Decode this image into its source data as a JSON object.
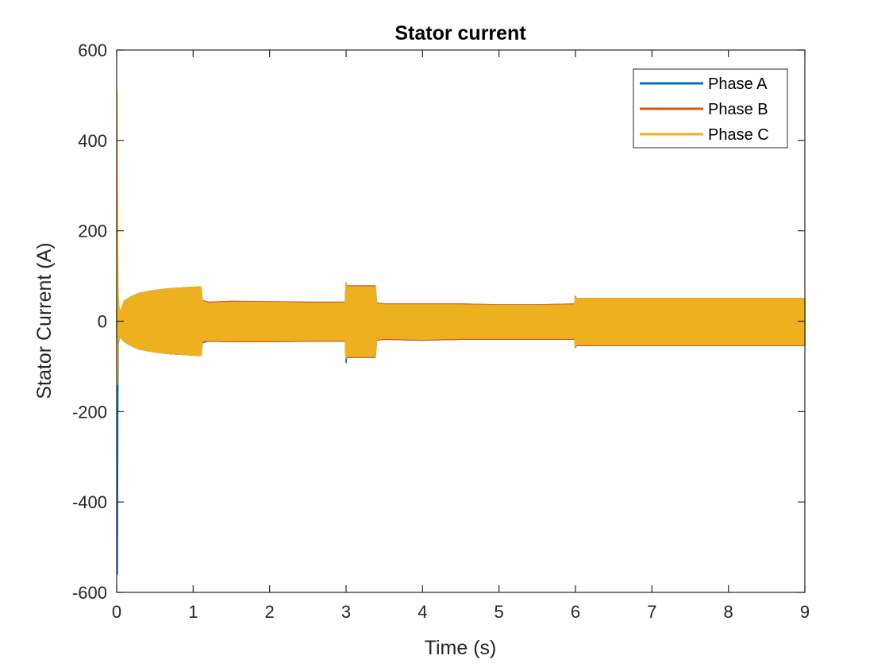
{
  "chart_data": {
    "type": "line",
    "title": "Stator current",
    "xlabel": "Time (s)",
    "ylabel": "Stator Current (A)",
    "xlim": [
      0,
      9
    ],
    "ylim": [
      -600,
      600
    ],
    "xticks": [
      0,
      1,
      2,
      3,
      4,
      5,
      6,
      7,
      8,
      9
    ],
    "yticks": [
      -600,
      -400,
      -200,
      0,
      200,
      400,
      600
    ],
    "grid": false,
    "legend_position": "top-right",
    "box": true,
    "series": [
      {
        "name": "Phase A",
        "color": "#0072BD",
        "x": [
          0,
          0.005,
          0.01,
          0.015,
          0.02,
          0.03,
          0.05,
          0.1,
          0.2,
          0.3,
          0.5,
          0.7,
          0.9,
          1.0,
          1.1,
          1.12,
          1.2,
          1.5,
          2.0,
          2.5,
          2.99,
          3.0,
          3.01,
          3.2,
          3.38,
          3.4,
          3.5,
          4.0,
          4.5,
          5.0,
          5.5,
          5.99,
          6.0,
          6.01,
          6.5,
          7.0,
          7.5,
          8.0,
          8.5,
          9.0
        ],
        "upper": [
          0,
          30,
          10,
          60,
          45,
          20,
          15,
          40,
          55,
          62,
          68,
          72,
          74,
          75,
          76,
          45,
          42,
          44,
          43,
          42,
          42,
          80,
          78,
          78,
          78,
          40,
          38,
          38,
          38,
          36,
          36,
          38,
          55,
          50,
          50,
          50,
          50,
          50,
          50,
          50
        ],
        "lower": [
          0,
          -130,
          -560,
          -220,
          -50,
          -40,
          -35,
          -45,
          -55,
          -62,
          -68,
          -72,
          -74,
          -75,
          -76,
          -48,
          -44,
          -45,
          -45,
          -44,
          -44,
          -92,
          -80,
          -80,
          -80,
          -42,
          -40,
          -42,
          -40,
          -40,
          -40,
          -40,
          -58,
          -54,
          -54,
          -54,
          -54,
          -54,
          -54,
          -54
        ]
      },
      {
        "name": "Phase B",
        "color": "#D95319",
        "x": [
          0,
          0.005,
          0.01,
          0.015,
          0.02,
          0.03,
          0.05,
          0.1,
          0.2,
          0.3,
          0.5,
          0.7,
          0.9,
          1.0,
          1.1,
          1.12,
          1.2,
          1.5,
          2.0,
          2.5,
          2.99,
          3.0,
          3.01,
          3.2,
          3.38,
          3.4,
          3.5,
          4.0,
          4.5,
          5.0,
          5.5,
          5.99,
          6.0,
          6.01,
          6.5,
          7.0,
          7.5,
          8.0,
          8.5,
          9.0
        ],
        "upper": [
          0,
          120,
          260,
          80,
          40,
          30,
          20,
          45,
          55,
          62,
          68,
          72,
          74,
          75,
          76,
          46,
          42,
          44,
          43,
          42,
          42,
          82,
          78,
          78,
          78,
          40,
          38,
          38,
          38,
          36,
          36,
          38,
          55,
          50,
          50,
          50,
          50,
          50,
          50,
          50
        ],
        "lower": [
          0,
          -60,
          -100,
          -60,
          -40,
          -40,
          -35,
          -45,
          -55,
          -62,
          -68,
          -72,
          -74,
          -75,
          -76,
          -46,
          -44,
          -45,
          -45,
          -44,
          -44,
          -84,
          -80,
          -80,
          -80,
          -42,
          -40,
          -42,
          -40,
          -40,
          -40,
          -40,
          -58,
          -54,
          -54,
          -54,
          -54,
          -54,
          -54,
          -54
        ]
      },
      {
        "name": "Phase C",
        "color": "#EDB120",
        "x": [
          0,
          0.005,
          0.01,
          0.015,
          0.02,
          0.03,
          0.05,
          0.1,
          0.2,
          0.3,
          0.5,
          0.7,
          0.9,
          1.0,
          1.1,
          1.12,
          1.2,
          1.5,
          2.0,
          2.5,
          2.99,
          3.0,
          3.01,
          3.2,
          3.38,
          3.4,
          3.5,
          4.0,
          4.5,
          5.0,
          5.5,
          5.99,
          6.0,
          6.01,
          6.5,
          7.0,
          7.5,
          8.0,
          8.5,
          9.0
        ],
        "upper": [
          0,
          510,
          300,
          120,
          60,
          30,
          20,
          45,
          55,
          62,
          68,
          72,
          74,
          75,
          76,
          44,
          40,
          42,
          42,
          40,
          40,
          86,
          76,
          76,
          76,
          38,
          36,
          36,
          36,
          35,
          35,
          36,
          53,
          50,
          50,
          50,
          50,
          50,
          50,
          50
        ],
        "lower": [
          0,
          -80,
          -140,
          -70,
          -40,
          -40,
          -35,
          -45,
          -55,
          -62,
          -68,
          -72,
          -74,
          -75,
          -76,
          -44,
          -42,
          -43,
          -43,
          -42,
          -42,
          -82,
          -78,
          -78,
          -78,
          -40,
          -38,
          -40,
          -38,
          -38,
          -38,
          -38,
          -56,
          -52,
          -52,
          -52,
          -52,
          -52,
          -52,
          -52
        ]
      }
    ]
  }
}
